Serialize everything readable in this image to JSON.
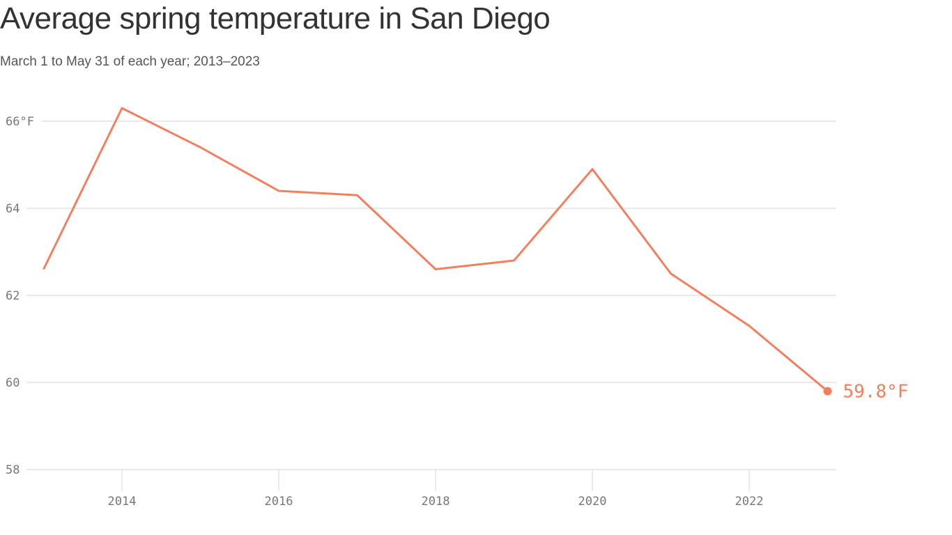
{
  "chart_data": {
    "type": "line",
    "title": "Average spring temperature in San Diego",
    "subtitle": "March 1 to May 31 of each year; 2013–2023",
    "x": [
      2013,
      2014,
      2015,
      2016,
      2017,
      2018,
      2019,
      2020,
      2021,
      2022,
      2023
    ],
    "series": [
      {
        "values": [
          62.6,
          66.3,
          65.4,
          64.4,
          64.3,
          62.6,
          62.8,
          64.9,
          62.5,
          61.3,
          59.8
        ]
      }
    ],
    "xticks": [
      "2014",
      "2016",
      "2018",
      "2020",
      "2022"
    ],
    "yticks": [
      "58",
      "60",
      "62",
      "64",
      "66°F"
    ],
    "ylim": [
      58,
      66
    ],
    "xlim": [
      2013,
      2023
    ],
    "grid": true,
    "end_label": "59.8°F",
    "line_color": "#f2805f"
  }
}
